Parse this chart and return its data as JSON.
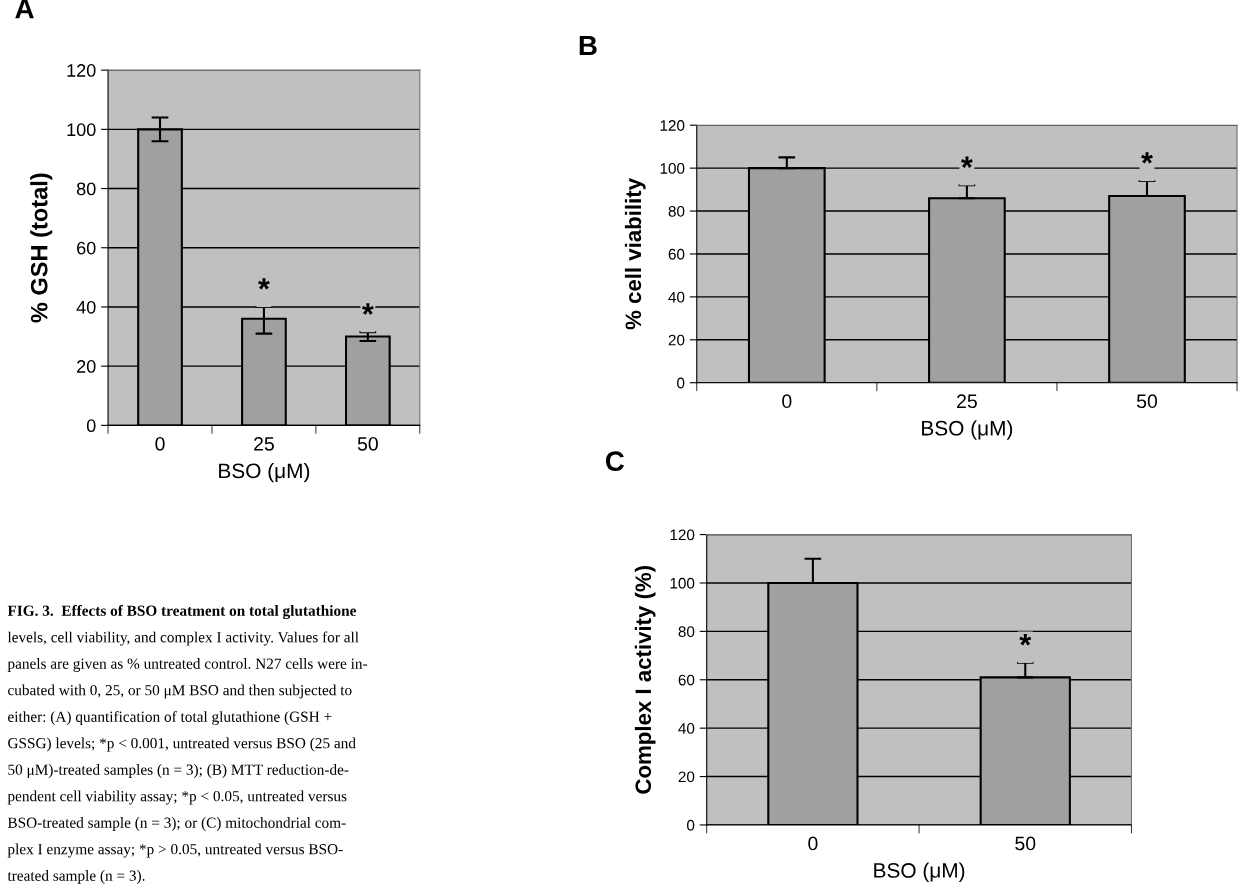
{
  "chart_data": [
    {
      "type": "bar",
      "title": "A",
      "categories": [
        "0",
        "25",
        "50"
      ],
      "values": [
        100,
        36,
        30
      ],
      "color": "#a0a0a0",
      "errors": [
        [
          96,
          104
        ],
        [
          31,
          40
        ],
        [
          28.5,
          31.5
        ]
      ],
      "xlabel": "BSO (μM)",
      "ylabel": "% GSH (total)",
      "ylim": [
        0,
        120
      ],
      "yticks": [
        0,
        20,
        40,
        60,
        80,
        100,
        120
      ],
      "grid": "y",
      "annotations": [
        {
          "text": "*",
          "x": "25",
          "y": 40
        },
        {
          "text": "*",
          "x": "50",
          "y": 31.5
        },
        "FIG. 3.  Effects of BSO treatment on total glutathione",
        "levels, cell viability, and complex I activity. Values for all",
        "panels are given as % untreated control. N27 cells were in-",
        "cubated with 0, 25, or 50 μM BSO and then subjected to",
        "either: (A) quantification of total glutathione (GSH +",
        "GSSG) levels; *p < 0.001, untreated versus BSO (25 and",
        "50 μM)-treated samples (n = 3); (B) MTT reduction-de-",
        "pendent cell viability assay; *p < 0.05, untreated versus",
        "BSO-treated sample (n = 3); or (C) mitochondrial com-",
        "plex I enzyme assay; *p > 0.05, untreated versus BSO-",
        "treated sample (n = 3)."
      ]
    },
    {
      "type": "bar",
      "title": "B",
      "categories": [
        "0",
        "25",
        "50"
      ],
      "values": [
        100,
        86,
        87
      ],
      "color": "#a0a0a0",
      "errors": [
        [
          100,
          105
        ],
        [
          86,
          92
        ],
        [
          87,
          94
        ]
      ],
      "xlabel": "BSO (μM)",
      "ylabel": "% cell viability",
      "ylim": [
        0,
        120
      ],
      "yticks": [
        0,
        20,
        40,
        60,
        80,
        100,
        120
      ],
      "grid": "y",
      "annotations": [
        {
          "text": "*",
          "x": "25",
          "y": 92
        },
        {
          "text": "*",
          "x": "50",
          "y": 94
        }
      ]
    },
    {
      "type": "bar",
      "title": "C",
      "categories": [
        "0",
        "50"
      ],
      "values": [
        100,
        61
      ],
      "color": "#a0a0a0",
      "errors": [
        [
          100,
          110
        ],
        [
          61,
          67
        ]
      ],
      "xlabel": "BSO (μM)",
      "ylabel": "Complex I activity (%)",
      "ylim": [
        0,
        120
      ],
      "yticks": [
        0,
        20,
        40,
        60,
        80,
        100,
        120
      ],
      "grid": "y",
      "annotations": [
        {
          "text": "*",
          "x": "50",
          "y": 67
        }
      ]
    }
  ]
}
